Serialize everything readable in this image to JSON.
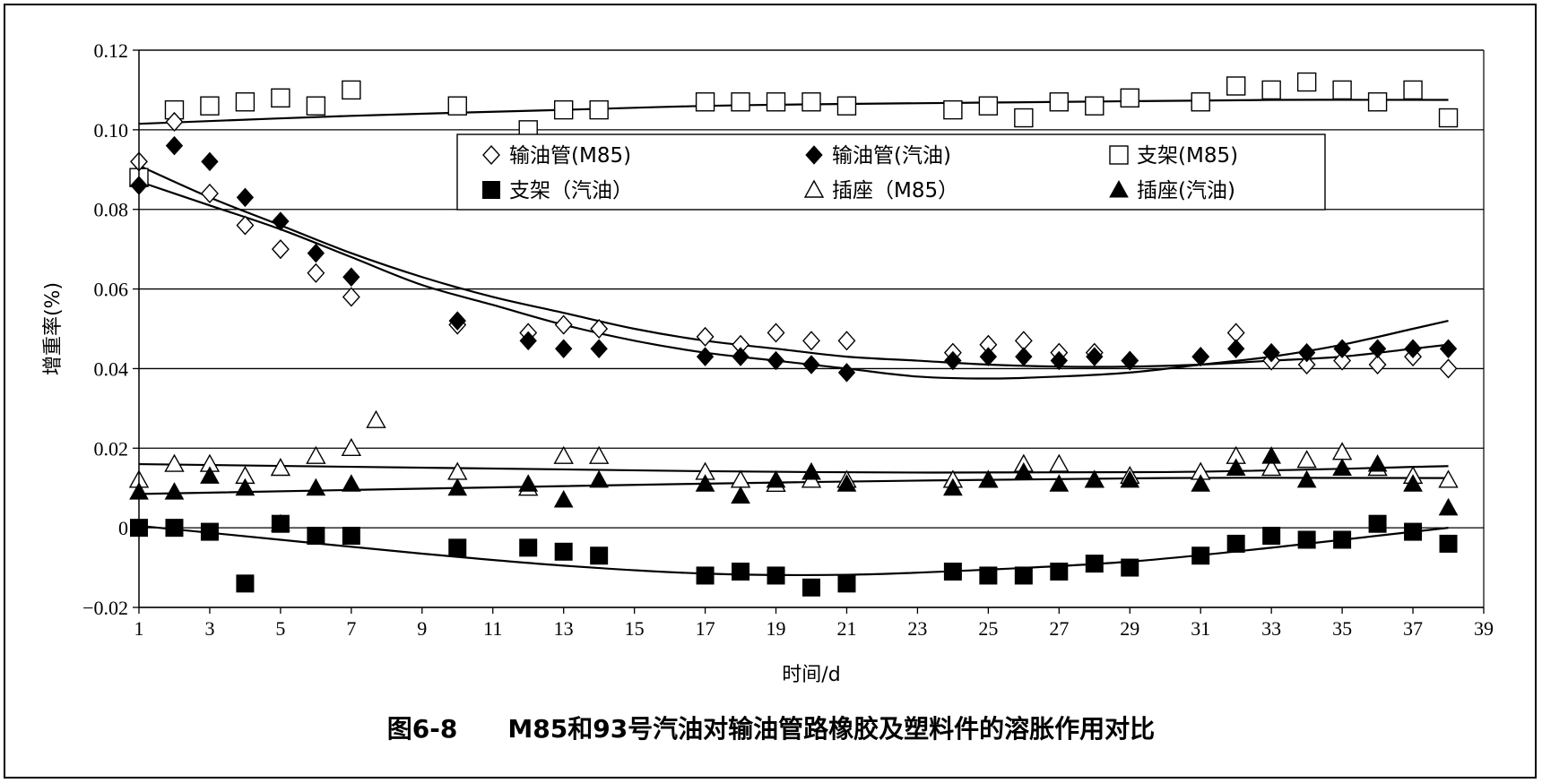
{
  "caption": "图6-8  M85和93号汽油对输油管路橡胶及塑料件的溶胀作用对比",
  "chart_data": {
    "type": "scatter",
    "title": "",
    "xlabel": "时间/d",
    "ylabel": "增重率(%)",
    "xlim": [
      1,
      39
    ],
    "ylim": [
      -0.02,
      0.12
    ],
    "xticks": [
      1,
      3,
      5,
      7,
      9,
      11,
      13,
      15,
      17,
      19,
      21,
      23,
      25,
      27,
      29,
      31,
      33,
      35,
      37,
      39
    ],
    "yticks": [
      -0.02,
      0,
      0.02,
      0.04,
      0.06,
      0.08,
      0.1,
      0.12
    ],
    "ytick_labels": [
      "−0.02",
      "0",
      "0.02",
      "0.04",
      "0.06",
      "0.08",
      "0.10",
      "0.12"
    ],
    "grid": "horizontal",
    "legend_position": "top-center",
    "series": [
      {
        "name": "输油管(M85)",
        "marker": "diamond-open",
        "color": "#000000",
        "points": [
          [
            1,
            0.092
          ],
          [
            2,
            0.102
          ],
          [
            3,
            0.084
          ],
          [
            4,
            0.076
          ],
          [
            5,
            0.07
          ],
          [
            6,
            0.064
          ],
          [
            7,
            0.058
          ],
          [
            10,
            0.051
          ],
          [
            12,
            0.049
          ],
          [
            13,
            0.051
          ],
          [
            14,
            0.05
          ],
          [
            17,
            0.048
          ],
          [
            18,
            0.046
          ],
          [
            19,
            0.049
          ],
          [
            20,
            0.047
          ],
          [
            21,
            0.047
          ],
          [
            24,
            0.044
          ],
          [
            25,
            0.046
          ],
          [
            26,
            0.047
          ],
          [
            27,
            0.044
          ],
          [
            28,
            0.044
          ],
          [
            29,
            0.042
          ],
          [
            31,
            0.043
          ],
          [
            32,
            0.049
          ],
          [
            33,
            0.042
          ],
          [
            34,
            0.041
          ],
          [
            35,
            0.042
          ],
          [
            36,
            0.041
          ],
          [
            37,
            0.043
          ],
          [
            38,
            0.04
          ]
        ]
      },
      {
        "name": "输油管(汽油)",
        "marker": "diamond-filled",
        "color": "#000000",
        "points": [
          [
            1,
            0.086
          ],
          [
            2,
            0.096
          ],
          [
            3,
            0.092
          ],
          [
            4,
            0.083
          ],
          [
            5,
            0.077
          ],
          [
            6,
            0.069
          ],
          [
            7,
            0.063
          ],
          [
            10,
            0.052
          ],
          [
            12,
            0.047
          ],
          [
            13,
            0.045
          ],
          [
            14,
            0.045
          ],
          [
            17,
            0.043
          ],
          [
            18,
            0.043
          ],
          [
            19,
            0.042
          ],
          [
            20,
            0.041
          ],
          [
            21,
            0.039
          ],
          [
            24,
            0.042
          ],
          [
            25,
            0.043
          ],
          [
            26,
            0.043
          ],
          [
            27,
            0.042
          ],
          [
            28,
            0.043
          ],
          [
            29,
            0.042
          ],
          [
            31,
            0.043
          ],
          [
            32,
            0.045
          ],
          [
            33,
            0.044
          ],
          [
            34,
            0.044
          ],
          [
            35,
            0.045
          ],
          [
            36,
            0.045
          ],
          [
            37,
            0.045
          ],
          [
            38,
            0.045
          ]
        ]
      },
      {
        "name": "支架(M85)",
        "marker": "square-open",
        "color": "#000000",
        "points": [
          [
            1,
            0.088
          ],
          [
            2,
            0.105
          ],
          [
            3,
            0.106
          ],
          [
            4,
            0.107
          ],
          [
            5,
            0.108
          ],
          [
            6,
            0.106
          ],
          [
            7,
            0.11
          ],
          [
            10,
            0.106
          ],
          [
            12,
            0.1
          ],
          [
            13,
            0.105
          ],
          [
            14,
            0.105
          ],
          [
            17,
            0.107
          ],
          [
            18,
            0.107
          ],
          [
            19,
            0.107
          ],
          [
            20,
            0.107
          ],
          [
            21,
            0.106
          ],
          [
            24,
            0.105
          ],
          [
            25,
            0.106
          ],
          [
            26,
            0.103
          ],
          [
            27,
            0.107
          ],
          [
            28,
            0.106
          ],
          [
            29,
            0.108
          ],
          [
            31,
            0.107
          ],
          [
            32,
            0.111
          ],
          [
            33,
            0.11
          ],
          [
            34,
            0.112
          ],
          [
            35,
            0.11
          ],
          [
            36,
            0.107
          ],
          [
            37,
            0.11
          ],
          [
            38,
            0.103
          ]
        ]
      },
      {
        "name": "支架（汽油）",
        "marker": "square-filled",
        "color": "#000000",
        "points": [
          [
            1,
            0.0
          ],
          [
            2,
            0.0
          ],
          [
            3,
            -0.001
          ],
          [
            4,
            -0.014
          ],
          [
            5,
            0.001
          ],
          [
            6,
            -0.002
          ],
          [
            7,
            -0.002
          ],
          [
            10,
            -0.005
          ],
          [
            12,
            -0.005
          ],
          [
            13,
            -0.006
          ],
          [
            14,
            -0.007
          ],
          [
            17,
            -0.012
          ],
          [
            18,
            -0.011
          ],
          [
            19,
            -0.012
          ],
          [
            20,
            -0.015
          ],
          [
            21,
            -0.014
          ],
          [
            24,
            -0.011
          ],
          [
            25,
            -0.012
          ],
          [
            26,
            -0.012
          ],
          [
            27,
            -0.011
          ],
          [
            28,
            -0.009
          ],
          [
            29,
            -0.01
          ],
          [
            31,
            -0.007
          ],
          [
            32,
            -0.004
          ],
          [
            33,
            -0.002
          ],
          [
            34,
            -0.003
          ],
          [
            35,
            -0.003
          ],
          [
            36,
            0.001
          ],
          [
            37,
            -0.001
          ],
          [
            38,
            -0.004
          ]
        ]
      },
      {
        "name": "插座（M85）",
        "marker": "triangle-open",
        "color": "#000000",
        "points": [
          [
            1,
            0.012
          ],
          [
            2,
            0.016
          ],
          [
            3,
            0.016
          ],
          [
            4,
            0.013
          ],
          [
            5,
            0.015
          ],
          [
            6,
            0.018
          ],
          [
            7,
            0.02
          ],
          [
            7.7,
            0.027
          ],
          [
            10,
            0.014
          ],
          [
            12,
            0.01
          ],
          [
            13,
            0.018
          ],
          [
            14,
            0.018
          ],
          [
            17,
            0.014
          ],
          [
            18,
            0.012
          ],
          [
            19,
            0.011
          ],
          [
            20,
            0.012
          ],
          [
            21,
            0.012
          ],
          [
            24,
            0.012
          ],
          [
            25,
            0.012
          ],
          [
            26,
            0.016
          ],
          [
            27,
            0.016
          ],
          [
            28,
            0.012
          ],
          [
            29,
            0.013
          ],
          [
            31,
            0.014
          ],
          [
            32,
            0.018
          ],
          [
            33,
            0.015
          ],
          [
            34,
            0.017
          ],
          [
            35,
            0.019
          ],
          [
            36,
            0.015
          ],
          [
            37,
            0.013
          ],
          [
            38,
            0.012
          ]
        ]
      },
      {
        "name": "插座(汽油)",
        "marker": "triangle-filled",
        "color": "#000000",
        "points": [
          [
            1,
            0.009
          ],
          [
            2,
            0.009
          ],
          [
            3,
            0.013
          ],
          [
            4,
            0.01
          ],
          [
            5,
            0.001
          ],
          [
            6,
            0.01
          ],
          [
            7,
            0.011
          ],
          [
            10,
            0.01
          ],
          [
            12,
            0.011
          ],
          [
            13,
            0.007
          ],
          [
            14,
            0.012
          ],
          [
            17,
            0.011
          ],
          [
            18,
            0.008
          ],
          [
            19,
            0.012
          ],
          [
            20,
            0.014
          ],
          [
            21,
            0.011
          ],
          [
            24,
            0.01
          ],
          [
            25,
            0.012
          ],
          [
            26,
            0.014
          ],
          [
            27,
            0.011
          ],
          [
            28,
            0.012
          ],
          [
            29,
            0.012
          ],
          [
            31,
            0.011
          ],
          [
            32,
            0.015
          ],
          [
            33,
            0.018
          ],
          [
            34,
            0.012
          ],
          [
            35,
            0.015
          ],
          [
            36,
            0.016
          ],
          [
            37,
            0.011
          ],
          [
            38,
            0.005
          ]
        ]
      }
    ],
    "trendlines": [
      {
        "for": "支架(M85)",
        "points": [
          [
            1,
            0.1015
          ],
          [
            7,
            0.1035
          ],
          [
            13,
            0.105
          ],
          [
            17,
            0.106
          ],
          [
            21,
            0.1065
          ],
          [
            27,
            0.107
          ],
          [
            33,
            0.1075
          ],
          [
            38,
            0.1075
          ]
        ]
      },
      {
        "for": "输油管(M85)",
        "points": [
          [
            1,
            0.091
          ],
          [
            3,
            0.083
          ],
          [
            5,
            0.076
          ],
          [
            7,
            0.069
          ],
          [
            9,
            0.063
          ],
          [
            11,
            0.058
          ],
          [
            13,
            0.054
          ],
          [
            15,
            0.05
          ],
          [
            17,
            0.047
          ],
          [
            19,
            0.045
          ],
          [
            21,
            0.043
          ],
          [
            23,
            0.042
          ],
          [
            25,
            0.041
          ],
          [
            27,
            0.0405
          ],
          [
            29,
            0.0405
          ],
          [
            31,
            0.041
          ],
          [
            33,
            0.042
          ],
          [
            35,
            0.043
          ],
          [
            37,
            0.045
          ],
          [
            38,
            0.046
          ]
        ]
      },
      {
        "for": "输油管(汽油)",
        "points": [
          [
            1,
            0.087
          ],
          [
            3,
            0.081
          ],
          [
            5,
            0.075
          ],
          [
            7,
            0.068
          ],
          [
            9,
            0.061
          ],
          [
            11,
            0.056
          ],
          [
            13,
            0.051
          ],
          [
            15,
            0.047
          ],
          [
            17,
            0.044
          ],
          [
            19,
            0.042
          ],
          [
            21,
            0.04
          ],
          [
            23,
            0.038
          ],
          [
            25,
            0.0375
          ],
          [
            27,
            0.038
          ],
          [
            29,
            0.039
          ],
          [
            31,
            0.041
          ],
          [
            33,
            0.043
          ],
          [
            35,
            0.046
          ],
          [
            37,
            0.05
          ],
          [
            38,
            0.052
          ]
        ]
      },
      {
        "for": "插座（M85）",
        "points": [
          [
            1,
            0.016
          ],
          [
            10,
            0.015
          ],
          [
            20,
            0.014
          ],
          [
            30,
            0.014
          ],
          [
            38,
            0.0155
          ]
        ]
      },
      {
        "for": "插座(汽油)",
        "points": [
          [
            1,
            0.0085
          ],
          [
            10,
            0.01
          ],
          [
            20,
            0.0115
          ],
          [
            30,
            0.0125
          ],
          [
            38,
            0.0125
          ]
        ]
      },
      {
        "for": "支架（汽油）",
        "points": [
          [
            1,
            0.0005
          ],
          [
            5,
            -0.003
          ],
          [
            9,
            -0.0065
          ],
          [
            13,
            -0.0095
          ],
          [
            17,
            -0.0115
          ],
          [
            21,
            -0.0118
          ],
          [
            25,
            -0.0105
          ],
          [
            29,
            -0.0085
          ],
          [
            33,
            -0.005
          ],
          [
            36,
            -0.002
          ],
          [
            38,
            0.0
          ]
        ]
      }
    ],
    "legend": {
      "rows": [
        [
          "输油管(M85)",
          "输油管(汽油)",
          "支架(M85)"
        ],
        [
          "支架（汽油）",
          "插座（M85）",
          "插座(汽油)"
        ]
      ]
    }
  }
}
